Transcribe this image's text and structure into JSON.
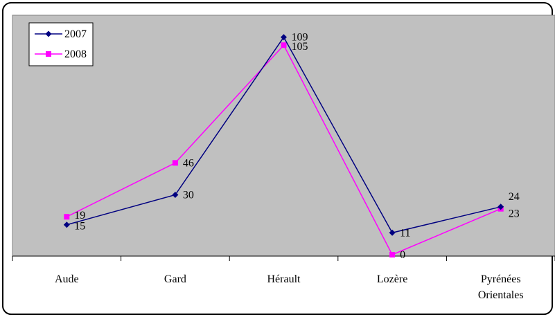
{
  "chart_data": {
    "type": "line",
    "categories": [
      "Aude",
      "Gard",
      "Hérault",
      "Lozère",
      "Pyrénées Orientales"
    ],
    "category_lines": [
      [
        "Aude"
      ],
      [
        "Gard"
      ],
      [
        "Hérault"
      ],
      [
        "Lozère"
      ],
      [
        "Pyrénées",
        "Orientales"
      ]
    ],
    "series": [
      {
        "name": "2007",
        "values": [
          15,
          30,
          109,
          11,
          24
        ],
        "color": "#000080",
        "marker": "diamond"
      },
      {
        "name": "2008",
        "values": [
          19,
          46,
          105,
          0,
          23
        ],
        "color": "#FF00FF",
        "marker": "square"
      }
    ],
    "ylim": [
      0,
      110
    ],
    "grid": false,
    "legend": {
      "position": "top-left",
      "entries": [
        "2007",
        "2008"
      ]
    },
    "colors": {
      "plot_area": "#C0C0C0",
      "frame": "#000000",
      "page": "#FFFFFF"
    }
  }
}
